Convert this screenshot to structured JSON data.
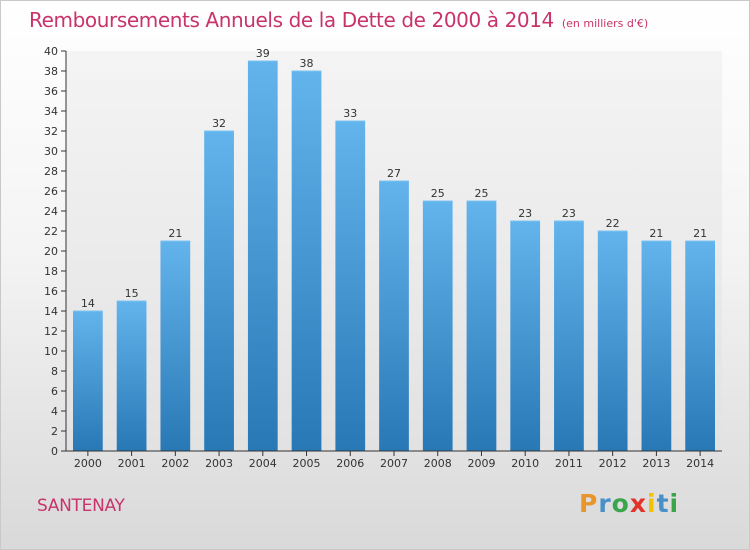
{
  "header": {
    "title": "Remboursements Annuels de la Dette de 2000 à 2014",
    "subtitle": "(en milliers d'€)"
  },
  "footer": {
    "commune": "SANTENAY",
    "logo": "Proxiti",
    "logo_letter_colors": [
      "#e8962b",
      "#4a90c8",
      "#3aa54b",
      "#e0342a",
      "#f2c100",
      "#4a90c8",
      "#3aa54b"
    ]
  },
  "chart_data": {
    "type": "bar",
    "title": "Remboursements Annuels de la Dette de 2000 à 2014",
    "subtitle": "(en milliers d'€)",
    "xlabel": "",
    "ylabel": "",
    "categories": [
      "2000",
      "2001",
      "2002",
      "2003",
      "2004",
      "2005",
      "2006",
      "2007",
      "2008",
      "2009",
      "2010",
      "2011",
      "2012",
      "2013",
      "2014"
    ],
    "values": [
      14,
      15,
      21,
      32,
      39,
      38,
      33,
      27,
      25,
      25,
      23,
      23,
      22,
      21,
      21
    ],
    "data_labels": [
      "14",
      "15",
      "21",
      "32",
      "39",
      "38",
      "33",
      "27",
      "25",
      "25",
      "23",
      "23",
      "22",
      "21",
      "21"
    ],
    "ylim": [
      0,
      40
    ],
    "yticks": [
      0,
      2,
      4,
      6,
      8,
      10,
      12,
      14,
      16,
      18,
      20,
      22,
      24,
      26,
      28,
      30,
      32,
      34,
      36,
      38,
      40
    ],
    "grid": false,
    "bar_color_top": "#63b4ec",
    "bar_color_bottom": "#2878b6"
  }
}
